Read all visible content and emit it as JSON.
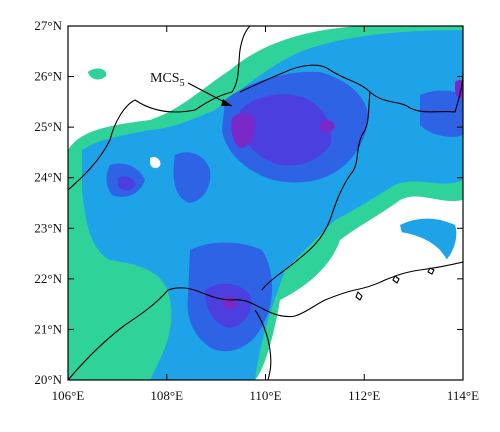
{
  "map": {
    "annotation": {
      "label": "MCS",
      "subscript": "5"
    },
    "x_axis": {
      "ticks": [
        "106°E",
        "108°E",
        "110°E",
        "112°E",
        "114°E"
      ],
      "range": [
        106,
        114
      ],
      "unit": "°E"
    },
    "y_axis": {
      "ticks": [
        "20°N",
        "21°N",
        "22°N",
        "23°N",
        "24°N",
        "25°N",
        "26°N",
        "27°N"
      ],
      "range": [
        20,
        27
      ],
      "unit": "°N"
    },
    "colors": {
      "background": "#ffffff",
      "level_1": "#2fd39a",
      "level_2": "#1fa3e8",
      "level_3": "#2f63e6",
      "level_4": "#4b3fe0",
      "level_5": "#7a29c8",
      "coastline": "#000000"
    }
  }
}
